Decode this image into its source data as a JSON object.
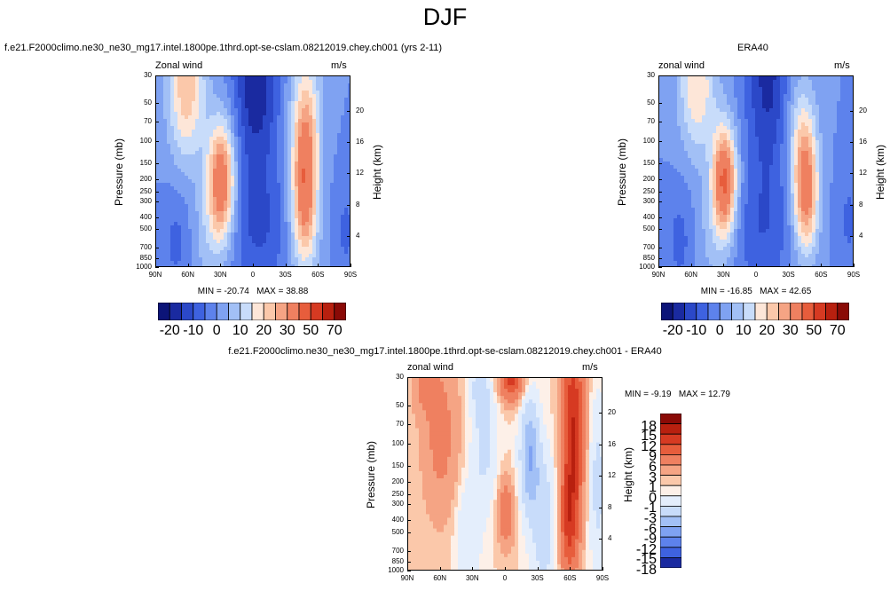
{
  "title": "DJF",
  "field": "Zonal wind",
  "units": "m/s",
  "chart_data": [
    {
      "type": "heatmap",
      "title": "f.e21.F2000climo.ne30_ne30_mg17.intel.1800pe.1thrd.opt-se-cslam.08212019.chey.ch001 (yrs 2-11)",
      "field_label": "Zonal wind",
      "units": "m/s",
      "xlabel": "",
      "ylabel": "Pressure (mb)",
      "y2label": "Height (km)",
      "x_ticks": [
        "90N",
        "60N",
        "30N",
        "0",
        "30S",
        "60S",
        "90S"
      ],
      "y_ticks": [
        30,
        50,
        70,
        100,
        150,
        200,
        250,
        300,
        400,
        500,
        700,
        850,
        1000
      ],
      "y2_ticks": [
        20,
        16,
        12,
        8,
        4
      ],
      "min": -20.74,
      "max": 38.88,
      "min_label": "MIN = -20.74",
      "max_label": "MAX =  38.88",
      "colorbar_levels": [
        -25,
        -20,
        -15,
        -10,
        -5,
        0,
        5,
        10,
        15,
        20,
        25,
        30,
        40,
        50,
        60,
        70
      ],
      "colorbar_labels": [
        "-20",
        "-10",
        "0",
        "10",
        "20",
        "30",
        "50",
        "70"
      ],
      "features": [
        {
          "lat": 30,
          "p": 200,
          "value": 38,
          "kind": "jet"
        },
        {
          "lat": -45,
          "p": 200,
          "value": 32,
          "kind": "jet"
        },
        {
          "lat": -5,
          "p": 30,
          "value": -20,
          "kind": "easterly"
        },
        {
          "lat": 65,
          "p": 30,
          "value": 25,
          "kind": "polar"
        }
      ]
    },
    {
      "type": "heatmap",
      "title": "ERA40",
      "field_label": "zonal wind",
      "units": "m/s",
      "xlabel": "",
      "ylabel": "Pressure (mb)",
      "y2label": "Height (km)",
      "x_ticks": [
        "90N",
        "60N",
        "30N",
        "0",
        "30S",
        "60S",
        "90S"
      ],
      "y_ticks": [
        30,
        50,
        70,
        100,
        150,
        200,
        250,
        300,
        400,
        500,
        700,
        850,
        1000
      ],
      "y2_ticks": [
        20,
        16,
        12,
        8,
        4
      ],
      "min": -16.85,
      "max": 42.65,
      "min_label": "MIN = -16.85",
      "max_label": "MAX =  42.65",
      "colorbar_levels": [
        -25,
        -20,
        -15,
        -10,
        -5,
        0,
        5,
        10,
        15,
        20,
        25,
        30,
        40,
        50,
        60,
        70
      ],
      "colorbar_labels": [
        "-20",
        "-10",
        "0",
        "10",
        "20",
        "30",
        "50",
        "70"
      ],
      "features": [
        {
          "lat": 30,
          "p": 200,
          "value": 42,
          "kind": "jet"
        },
        {
          "lat": -45,
          "p": 220,
          "value": 35,
          "kind": "jet"
        },
        {
          "lat": -10,
          "p": 30,
          "value": -17,
          "kind": "easterly"
        },
        {
          "lat": 60,
          "p": 30,
          "value": 20,
          "kind": "polar"
        }
      ]
    },
    {
      "type": "heatmap",
      "title": "f.e21.F2000climo.ne30_ne30_mg17.intel.1800pe.1thrd.opt-se-cslam.08212019.chey.ch001 - ERA40",
      "field_label": "zonal wind",
      "units": "m/s",
      "xlabel": "",
      "ylabel": "Pressure (mb)",
      "y2label": "Height (km)",
      "x_ticks": [
        "90N",
        "60N",
        "30N",
        "0",
        "30S",
        "60S",
        "90S"
      ],
      "y_ticks": [
        30,
        50,
        70,
        100,
        150,
        200,
        250,
        300,
        400,
        500,
        700,
        850,
        1000
      ],
      "y2_ticks": [
        20,
        16,
        12,
        8,
        4
      ],
      "min": -9.19,
      "max": 12.79,
      "min_label": "MIN = -9.19",
      "max_label": "MAX =  12.79",
      "colorbar_levels": [
        18,
        15,
        12,
        9,
        6,
        3,
        1,
        0,
        -1,
        -3,
        -6,
        -9,
        -12,
        -15,
        -18
      ],
      "colorbar_labels": [
        "18",
        "15",
        "12",
        "9",
        "6",
        "3",
        "1",
        "0",
        "-1",
        "-3",
        "-6",
        "-9",
        "-12",
        "-15",
        "-18"
      ],
      "features": [
        {
          "lat": -60,
          "p": 60,
          "value": 12,
          "kind": "positive"
        },
        {
          "lat": -10,
          "p": 30,
          "value": 10,
          "kind": "positive"
        },
        {
          "lat": 0,
          "p": 300,
          "value": 6,
          "kind": "positive"
        },
        {
          "lat": -20,
          "p": 120,
          "value": -9,
          "kind": "negative"
        }
      ]
    }
  ],
  "palettes": {
    "div16": [
      "#0c1478",
      "#1a2aa0",
      "#2b48c8",
      "#3e62e0",
      "#5d82ec",
      "#7fa2f2",
      "#a2c0f6",
      "#c8dcfa",
      "#fde6d8",
      "#fbc8aa",
      "#f5a484",
      "#ef8060",
      "#e75d3c",
      "#d63a22",
      "#b8200f",
      "#8a0a06"
    ],
    "div15": [
      "#8a0a06",
      "#b8200f",
      "#d63a22",
      "#e75d3c",
      "#ef8060",
      "#f5a484",
      "#fbc8aa",
      "#fdf0e8",
      "#e4eefc",
      "#c8dcfa",
      "#a2c0f6",
      "#7fa2f2",
      "#5d82ec",
      "#3e62e0",
      "#1a2aa0"
    ]
  }
}
